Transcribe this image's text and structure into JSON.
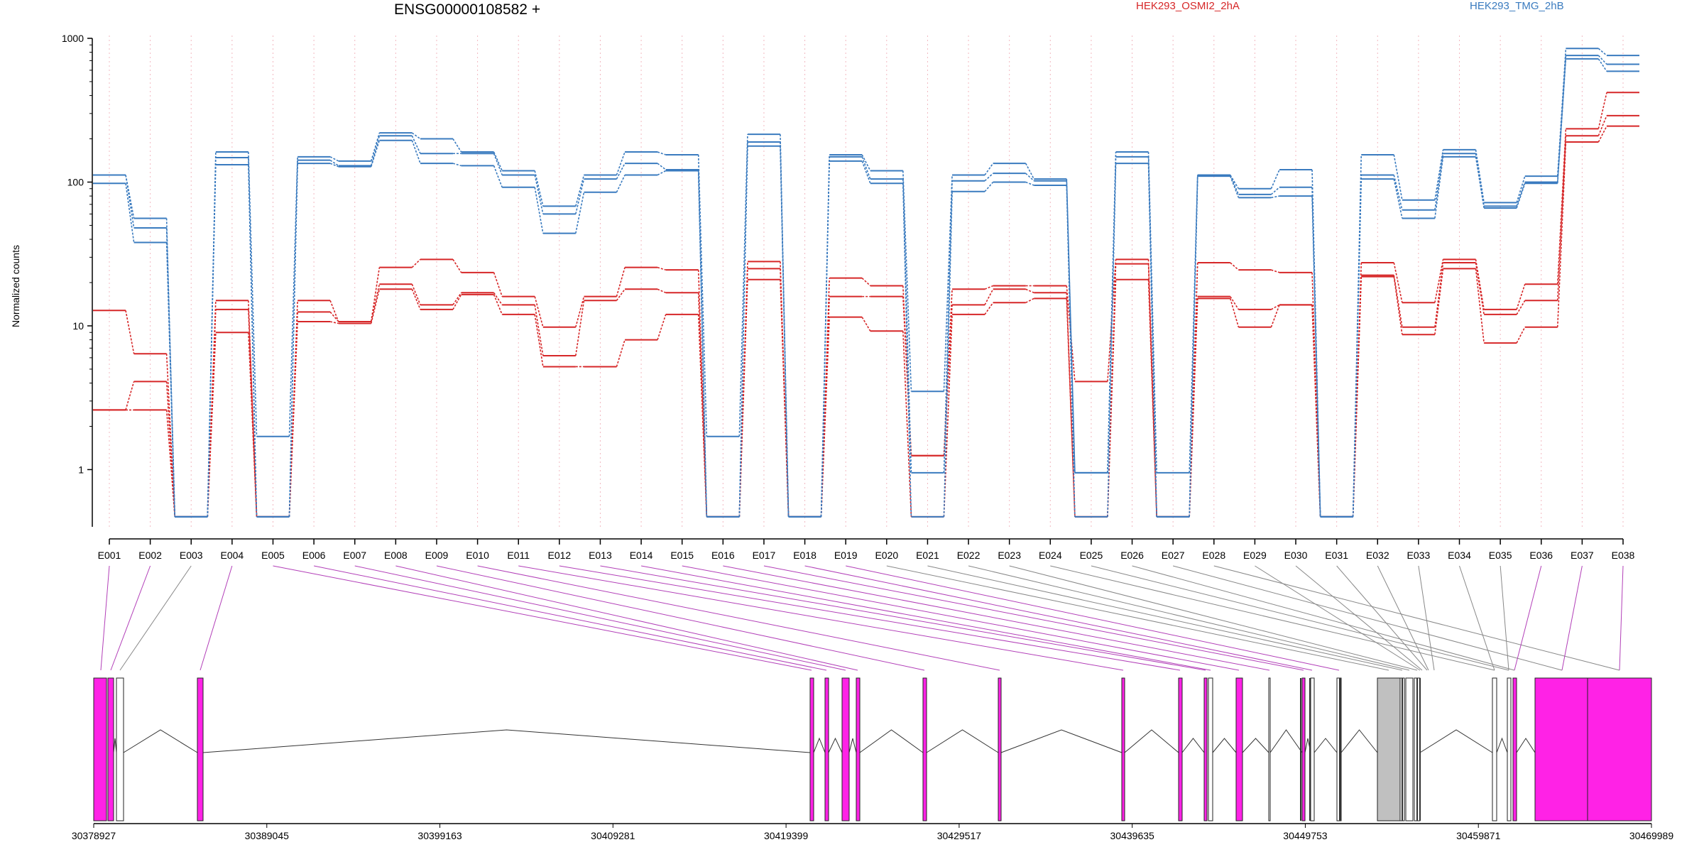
{
  "chart_data": {
    "type": "line",
    "title": "ENSG00000108582 +",
    "ylabel": "Normalized counts",
    "xlabel": "",
    "yscale": "log",
    "ylim": [
      0.4,
      1000
    ],
    "yticks": [
      1,
      10,
      100,
      1000
    ],
    "ytick_labels": [
      "1",
      "10",
      "100",
      "1000"
    ],
    "grid": "vertical dotted lines at exons",
    "legend_placement": "top",
    "categories": [
      "E001",
      "E002",
      "E003",
      "E004",
      "E005",
      "E006",
      "E007",
      "E008",
      "E009",
      "E010",
      "E011",
      "E012",
      "E013",
      "E014",
      "E015",
      "E016",
      "E017",
      "E018",
      "E019",
      "E020",
      "E021",
      "E022",
      "E023",
      "E024",
      "E025",
      "E026",
      "E027",
      "E028",
      "E029",
      "E030",
      "E031",
      "E032",
      "E033",
      "E034",
      "E035",
      "E036",
      "E037",
      "E038"
    ],
    "series": [
      {
        "name": "HEK293_OSMI2_2hA",
        "color": "#d62728",
        "values": [
          12.8,
          6.4,
          0.47,
          15,
          0.47,
          15,
          10.7,
          25.5,
          29,
          23.5,
          16,
          9.8,
          16,
          25.5,
          24.5,
          0.47,
          28,
          0.47,
          21.5,
          19,
          1.25,
          18,
          19,
          19,
          4.1,
          29,
          0.47,
          27.5,
          24.5,
          23.5,
          0.47,
          27.5,
          14.5,
          29,
          13,
          19.5,
          235,
          420
        ]
      },
      {
        "name": "HEK293_OSMI2_2hA",
        "color": "#d62728",
        "values": [
          2.6,
          4.1,
          0.47,
          13,
          0.47,
          12.5,
          10.7,
          19.5,
          14,
          17,
          14,
          6.2,
          15,
          18,
          17,
          0.47,
          25,
          0.47,
          16,
          16,
          1.25,
          14,
          18,
          17,
          0.47,
          27,
          0.47,
          16,
          13,
          14,
          0.47,
          22.5,
          9.8,
          27.5,
          12,
          15,
          210,
          290
        ]
      },
      {
        "name": "HEK293_OSMI2_2hA",
        "color": "#d62728",
        "values": [
          2.6,
          2.6,
          0.47,
          9,
          0.47,
          10.7,
          10.4,
          18,
          13,
          16.5,
          12,
          5.2,
          5.2,
          8,
          12,
          0.47,
          21,
          0.47,
          11.5,
          9.2,
          0.47,
          12,
          14.5,
          15.5,
          0.47,
          21,
          0.47,
          15.5,
          9.8,
          14,
          0.47,
          22,
          8.7,
          25,
          7.6,
          9.8,
          190,
          245
        ]
      },
      {
        "name": "HEK293_TMG_2hB",
        "color": "#3a7bbf",
        "values": [
          112,
          56,
          0.47,
          162,
          1.7,
          150,
          140,
          220,
          200,
          162,
          120,
          68,
          112,
          162,
          155,
          1.7,
          215,
          0.47,
          155,
          120,
          3.5,
          112,
          135,
          105,
          0.95,
          162,
          0.95,
          112,
          90,
          122,
          0.47,
          155,
          75,
          168,
          72,
          110,
          850,
          760
        ]
      },
      {
        "name": "HEK293_TMG_2hB",
        "color": "#3a7bbf",
        "values": [
          112,
          48,
          0.47,
          148,
          0.47,
          142,
          130,
          210,
          158,
          158,
          112,
          60,
          105,
          135,
          122,
          0.47,
          190,
          0.47,
          150,
          105,
          0.95,
          102,
          115,
          102,
          0.95,
          150,
          0.47,
          112,
          82,
          92,
          0.47,
          112,
          64,
          158,
          68,
          100,
          760,
          660
        ]
      },
      {
        "name": "HEK293_TMG_2hB",
        "color": "#3a7bbf",
        "values": [
          98,
          38,
          0.47,
          132,
          0.47,
          135,
          128,
          195,
          135,
          130,
          92,
          44,
          85,
          112,
          120,
          0.47,
          178,
          0.47,
          140,
          98,
          0.47,
          86,
          100,
          95,
          0.47,
          135,
          0.47,
          110,
          78,
          80,
          0.47,
          105,
          56,
          150,
          66,
          98,
          720,
          590
        ]
      }
    ],
    "genome": {
      "coordinate_ticks": [
        "30378927",
        "30389045",
        "30399163",
        "30409281",
        "30419399",
        "30429517",
        "30439635",
        "30449753",
        "30459871",
        "30469989"
      ],
      "exon_color_differential": "#ff22e6",
      "exon_color_other": "#ffffff",
      "exon_color_gray": "#c0c0c0"
    }
  }
}
